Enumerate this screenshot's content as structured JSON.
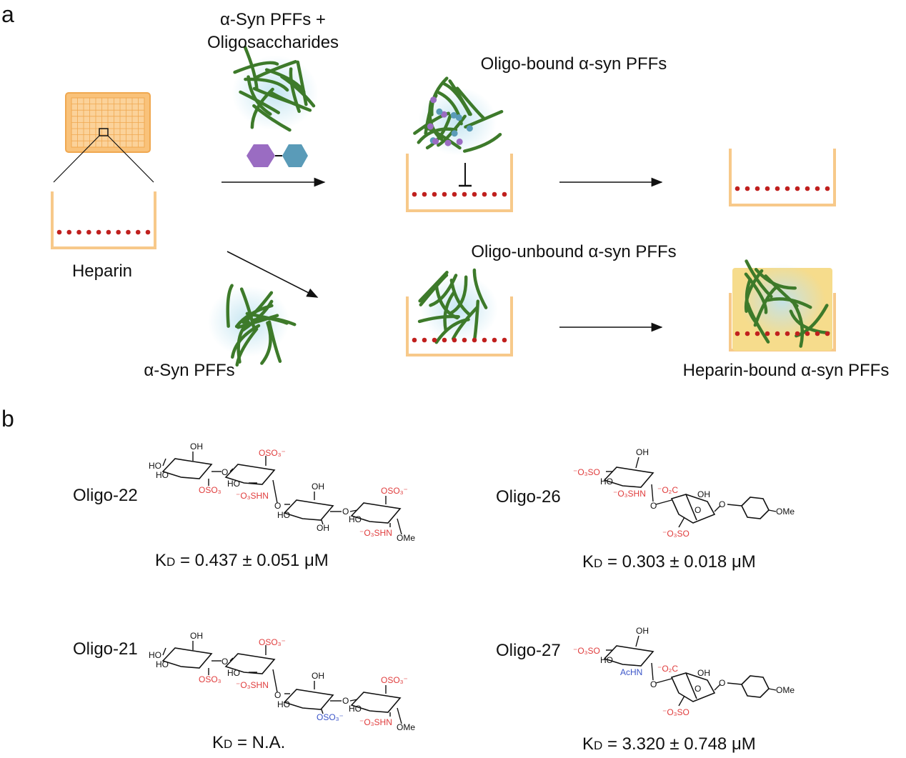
{
  "panel_a": {
    "letter": "a",
    "reagent_label_line1": "α-Syn PFFs +",
    "reagent_label_line2": "Oligosaccharides",
    "oligo_bound_label": "Oligo-bound α-syn PFFs",
    "heparin_label": "Heparin",
    "oligo_unbound_label": "Oligo-unbound α-syn PFFs",
    "syn_pffs_label": "α-Syn PFFs",
    "heparin_bound_label": "Heparin-bound α-syn PFFs",
    "colors": {
      "well": "#f7c98a",
      "plate": "#f9c27a",
      "heparin_dot": "#c0201e",
      "fibril": "#3d7a2a",
      "glow": "#bfe3f0",
      "hex_purple": "#9a6cc2",
      "hex_blue": "#5a9bb8",
      "bound_fill": "#f6dc8c"
    }
  },
  "panel_b": {
    "letter": "b",
    "kd_k": "K",
    "kd_d": "D",
    "compounds": [
      {
        "name": "Oligo-22",
        "kd": " = 0.437 ± 0.051 μM",
        "labels": {
          "oh1": "OH",
          "ho1": "HO",
          "ho2": "HO",
          "oso3a": "OSO₃",
          "o1": "O",
          "oso3b": "OSO₃⁻",
          "ho3": "HO",
          "nhs1": "⁻O₃SHN",
          "o2": "O",
          "oh2": "OH",
          "ho4": "HO",
          "r3sub": "OH",
          "o3": "O",
          "oso3c": "OSO₃⁻",
          "ho5": "HO",
          "nhs2": "⁻O₃SHN",
          "ome": "OMe",
          "ring_o": "O"
        }
      },
      {
        "name": "Oligo-26",
        "kd": " = 0.303 ± 0.018 μM",
        "labels": {
          "oso3": "⁻O₃SO",
          "oh": "OH",
          "ho": "HO",
          "n": "⁻O₃SHN",
          "o1": "O",
          "co2": "⁻O₂C",
          "oh2": "OH",
          "o2": "O",
          "oso3b": "⁻O₃SO",
          "o3": "O",
          "ome": "OMe",
          "ring_o": "O"
        }
      },
      {
        "name": "Oligo-21",
        "kd": " = N.A.",
        "labels": {
          "oh1": "OH",
          "ho1": "HO",
          "ho2": "HO",
          "oso3a": "OSO₃",
          "o1": "O",
          "oso3b": "OSO₃⁻",
          "ho3": "HO",
          "nhs1": "⁻O₃SHN",
          "o2": "O",
          "oh2": "OH",
          "ho4": "HO",
          "r3sub": "OSO₃⁻",
          "o3": "O",
          "oso3c": "OSO₃⁻",
          "ho5": "HO",
          "nhs2": "⁻O₃SHN",
          "ome": "OMe",
          "ring_o": "O"
        }
      },
      {
        "name": "Oligo-27",
        "kd": " = 3.320 ± 0.748 μM",
        "labels": {
          "oso3": "⁻O₃SO",
          "oh": "OH",
          "ho": "HO",
          "n": "AcHN",
          "o1": "O",
          "co2": "⁻O₂C",
          "oh2": "OH",
          "o2": "O",
          "oso3b": "⁻O₃SO",
          "o3": "O",
          "ome": "OMe",
          "ring_o": "O"
        }
      }
    ]
  }
}
